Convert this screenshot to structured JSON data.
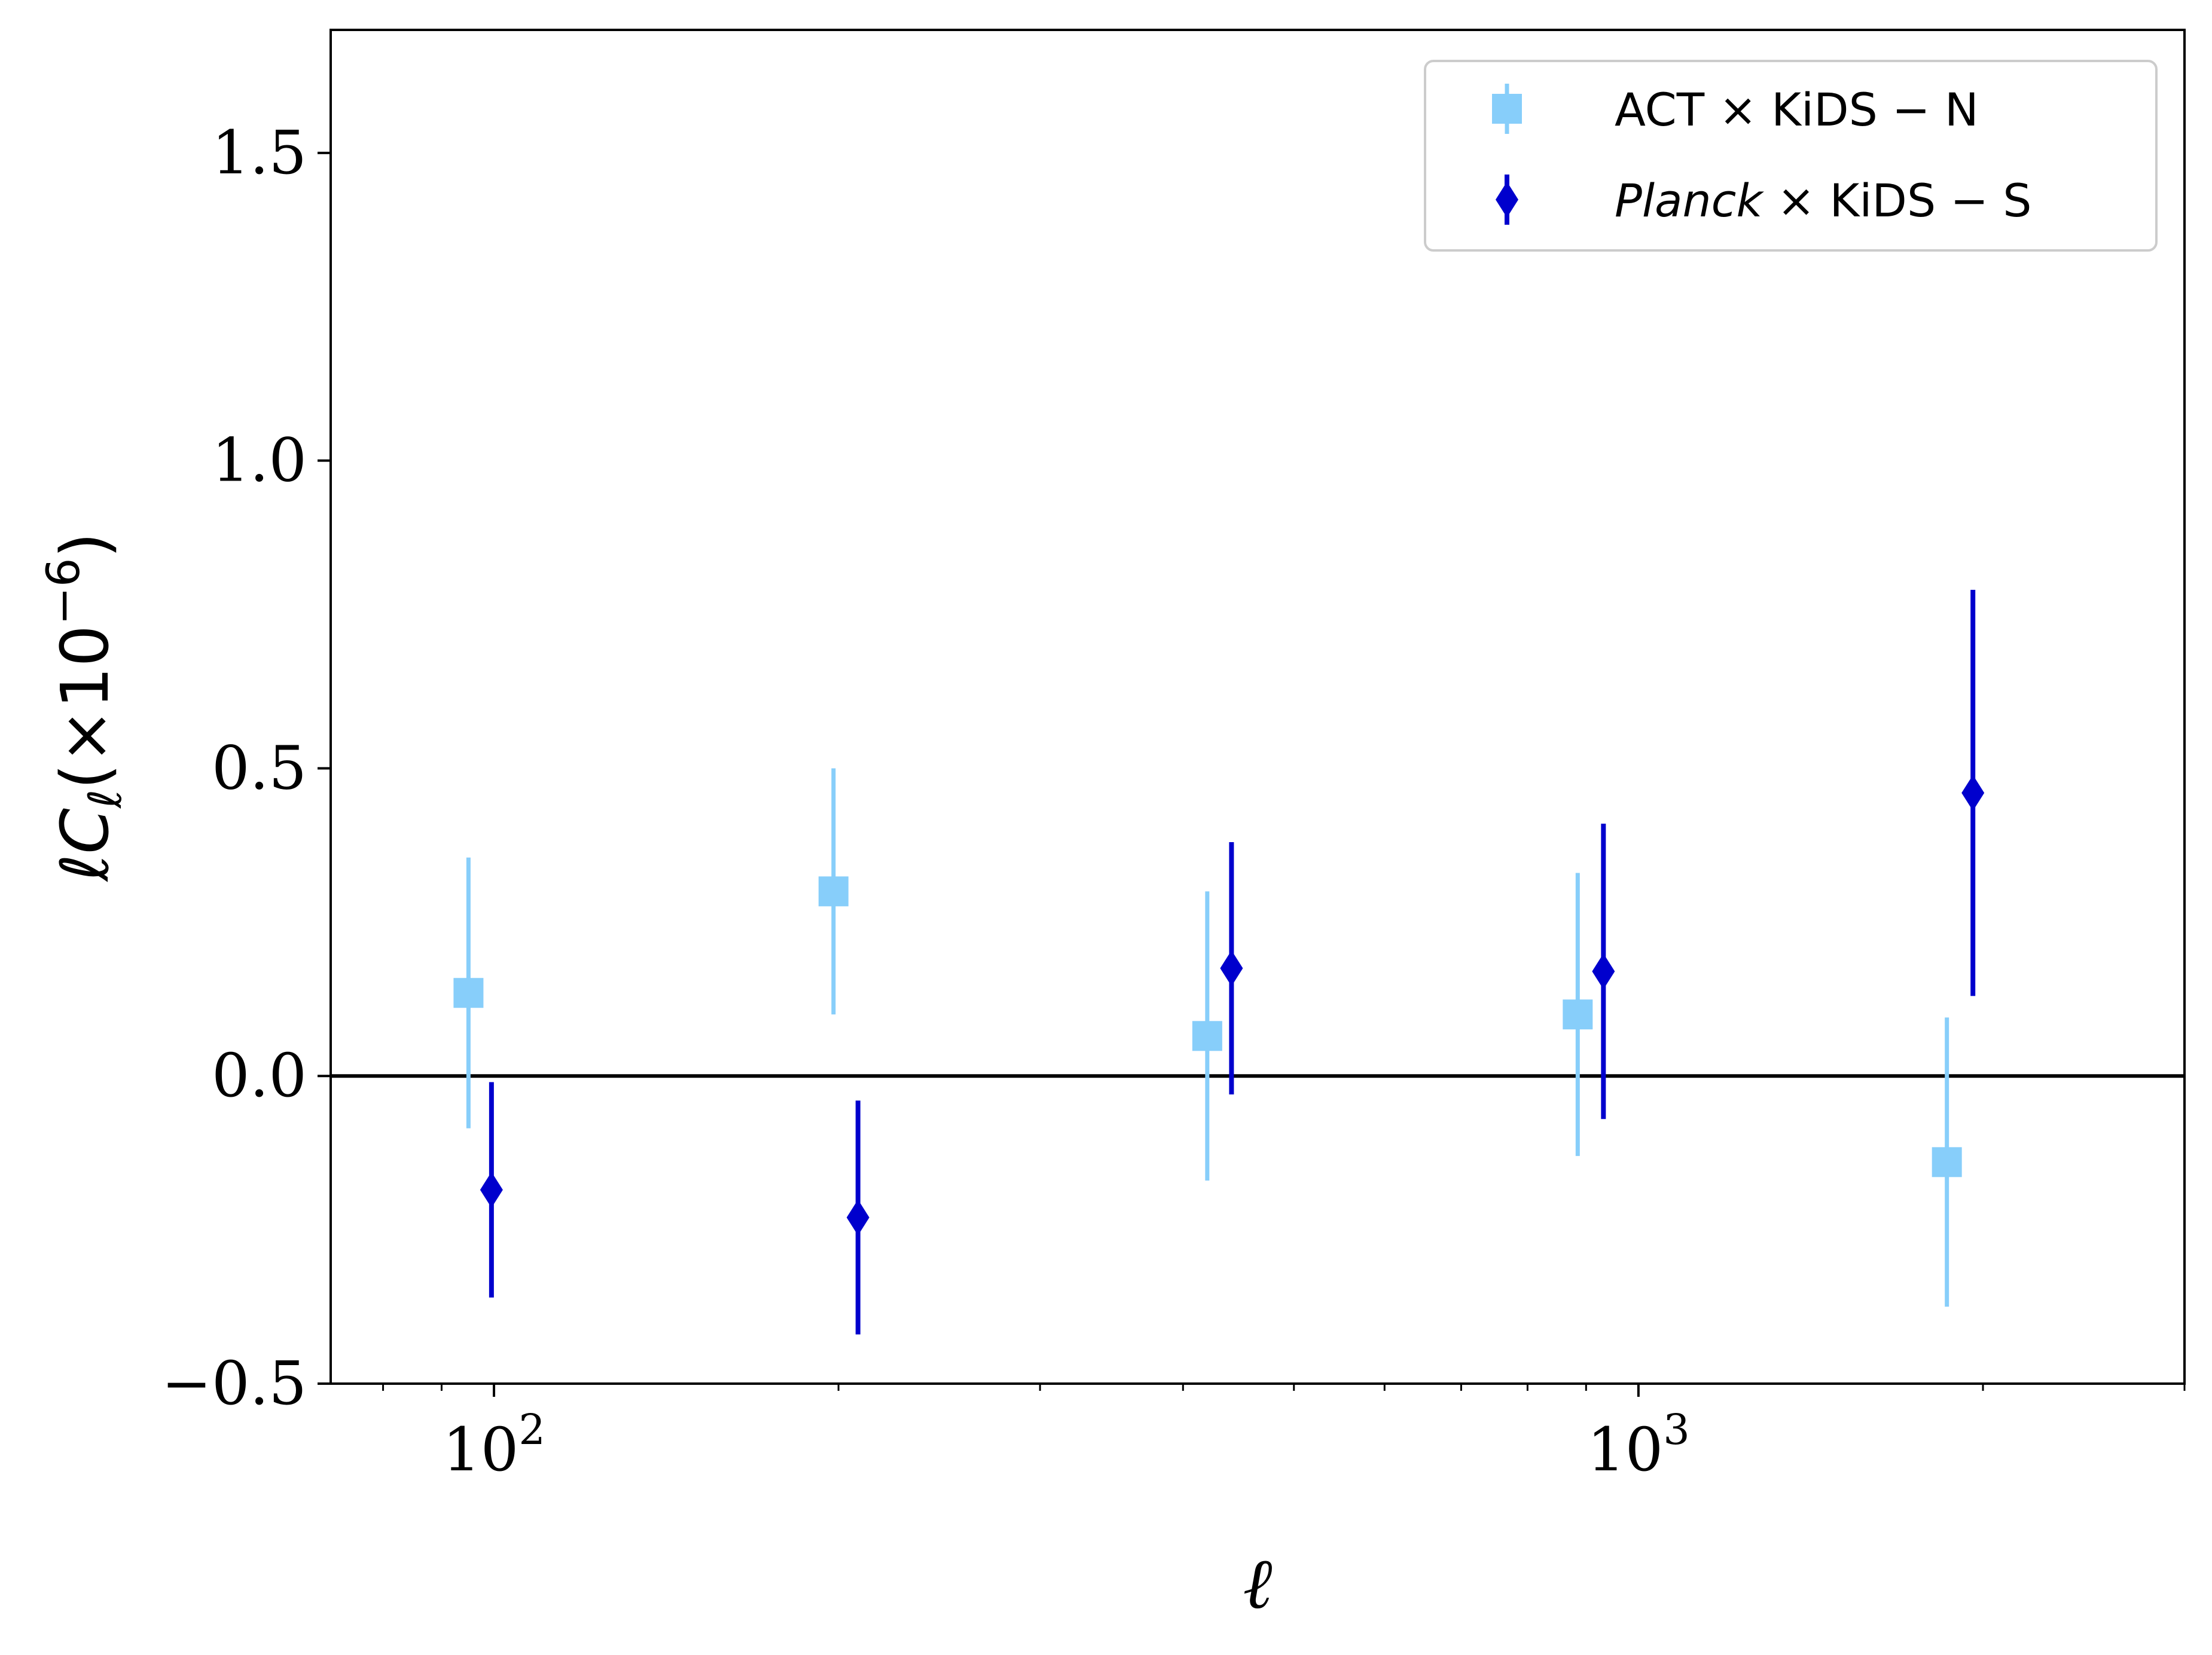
{
  "chart_data": {
    "type": "scatter",
    "xscale": "log",
    "xlim": [
      72,
      3000
    ],
    "ylim": [
      -0.5,
      1.7
    ],
    "xlabel": "ℓ",
    "ylabel": "ℓC_ℓ(×10⁻⁶)",
    "ylabel_main": "ℓC",
    "ylabel_sub": "ℓ",
    "ylabel_tail": "(×10",
    "ylabel_exp": "−6",
    "ylabel_close": ")",
    "x_major_ticks": [
      {
        "value": 100,
        "base": "10",
        "exp": "2"
      },
      {
        "value": 1000,
        "base": "10",
        "exp": "3"
      }
    ],
    "y_ticks": [
      {
        "value": -0.5,
        "label": "−0.5"
      },
      {
        "value": 0.0,
        "label": "0.0"
      },
      {
        "value": 0.5,
        "label": "0.5"
      },
      {
        "value": 1.0,
        "label": "1.0"
      },
      {
        "value": 1.5,
        "label": "1.5"
      }
    ],
    "reference_line_y": 0.0,
    "legend_position": "top-right",
    "series": [
      {
        "name": "ACT × KiDS − N",
        "label_prefix": "ACT",
        "label_rest": " × KiDS − N",
        "prefix_italic": false,
        "marker": "square",
        "color": "#87cefa",
        "points": [
          {
            "x": 95,
            "y": 0.135,
            "err": 0.22
          },
          {
            "x": 198,
            "y": 0.3,
            "err": 0.2
          },
          {
            "x": 420,
            "y": 0.065,
            "err": 0.235
          },
          {
            "x": 885,
            "y": 0.1,
            "err": 0.23
          },
          {
            "x": 1860,
            "y": -0.14,
            "err": 0.235
          }
        ]
      },
      {
        "name": "Planck × KiDS − S",
        "label_prefix": "Planck",
        "label_rest": " × KiDS − S",
        "prefix_italic": true,
        "marker": "diamond",
        "color": "#0000cd",
        "points": [
          {
            "x": 99.5,
            "y": -0.185,
            "err": 0.175
          },
          {
            "x": 208,
            "y": -0.23,
            "err": 0.19
          },
          {
            "x": 441,
            "y": 0.175,
            "err": 0.205
          },
          {
            "x": 932,
            "y": 0.17,
            "err": 0.24
          },
          {
            "x": 1960,
            "y": 0.46,
            "err": 0.33
          }
        ]
      }
    ]
  }
}
